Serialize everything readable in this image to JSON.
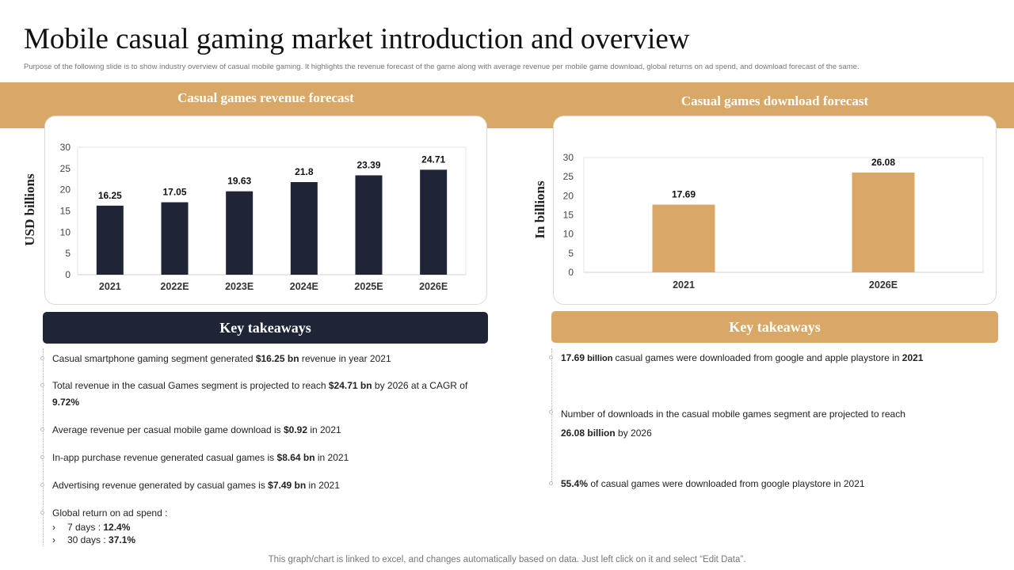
{
  "title": "Mobile casual gaming market introduction and overview",
  "subtitle": "Purpose of the following slide is to show  industry overview of casual mobile gaming.  It highlights the revenue forecast of the game along with average revenue per mobile game download, global returns on ad spend, and download forecast of the same.",
  "colors": {
    "band": "#d9a866",
    "navy": "#1f2537",
    "gold": "#d9a866"
  },
  "chart_data": [
    {
      "type": "bar",
      "title": "Casual games revenue forecast",
      "ylabel": "USD billions",
      "categories": [
        "2021",
        "2022E",
        "2023E",
        "2024E",
        "2025E",
        "2026E"
      ],
      "values": [
        16.25,
        17.05,
        19.63,
        21.8,
        23.39,
        24.71
      ],
      "ylim": [
        0,
        30
      ],
      "yticks": [
        0,
        5,
        10,
        15,
        20,
        25,
        30
      ],
      "grid": false,
      "color": "#1f2537"
    },
    {
      "type": "bar",
      "title": "Casual games download forecast",
      "ylabel": "In billions",
      "categories": [
        "2021",
        "2026E"
      ],
      "values": [
        17.69,
        26.08
      ],
      "ylim": [
        0,
        30
      ],
      "yticks": [
        0,
        5,
        10,
        15,
        20,
        25,
        30
      ],
      "grid": false,
      "color": "#d9a866"
    }
  ],
  "left_takeaways": {
    "header": "Key takeaways",
    "b1": {
      "pre": "Casual smartphone gaming segment generated ",
      "bold": "$16.25 bn",
      "post": " revenue in year 2021"
    },
    "b2": {
      "pre": "Total revenue  in the casual Games segment is projected to reach ",
      "bold": "$24.71 bn",
      "mid": " by 2026 at a CAGR of ",
      "bold2": "9.72%"
    },
    "b3": {
      "pre": "Average  revenue  per casual mobile game download  is ",
      "bold": "$0.92",
      "post": " in 2021"
    },
    "b4": {
      "pre": "In-app  purchase revenue  generated  casual games is ",
      "bold": "$8.64 bn",
      "post": " in 2021"
    },
    "b5": {
      "pre": "Advertising revenue  generated  by casual games is ",
      "bold": "$7.49 bn",
      "post": " in 2021"
    },
    "b6": {
      "text": "Global return on ad spend :",
      "sub1_label": "7 days : ",
      "sub1_value": "12.4%",
      "sub2_label": "30 days : ",
      "sub2_value": "37.1%",
      "chevron": "›"
    }
  },
  "right_takeaways": {
    "header": "Key takeaways",
    "b1": {
      "bold": "17.69",
      "small": " billion ",
      "mid": " casual games were downloaded from google and apple playstore in ",
      "bold2": "2021"
    },
    "b2": {
      "pre": "Number of downloads in the casual mobile games segment are projected to reach",
      "bold": "26.08 billion",
      "post": " by 2026"
    },
    "b3": {
      "bold": "55.4%",
      "post": "  of casual games were downloaded from google playstore in 2021"
    }
  },
  "footer": "This graph/chart is linked to excel,  and changes automatically based on data. Just left click on it and select “Edit Data”."
}
